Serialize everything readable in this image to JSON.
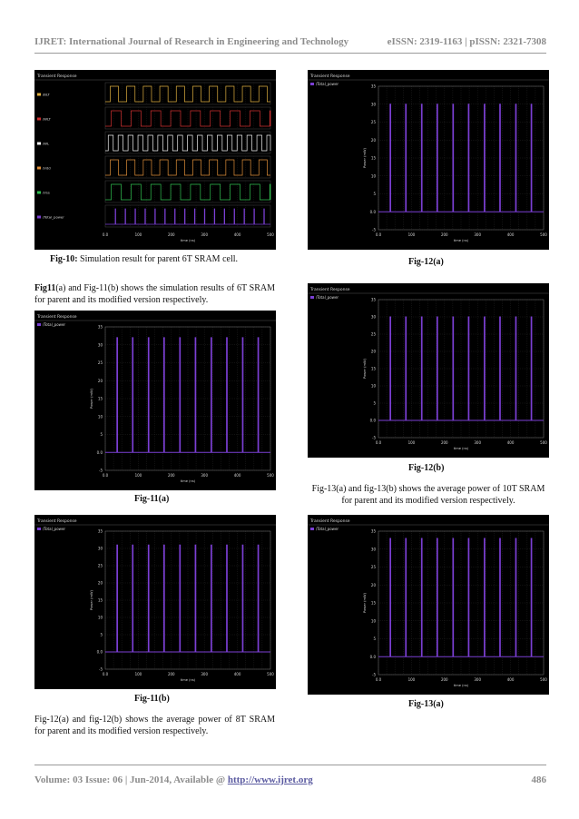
{
  "header": {
    "journal": "IJRET: International Journal of Research in Engineering and Technology",
    "issn": "eISSN: 2319-1163 | pISSN: 2321-7308"
  },
  "footer": {
    "volume_text": "Volume: 03 Issue: 06 | Jun-2014, Available @ ",
    "url": "http://www.ijret.org",
    "page_number": "486"
  },
  "figures": {
    "fig10": {
      "label": "Fig-10:",
      "text": " Simulation result for parent 6T SRAM cell."
    },
    "fig11a": "Fig-11(a)",
    "fig11b": "Fig-11(b)",
    "fig12a": "Fig-12(a)",
    "fig12b": "Fig-12(b)",
    "fig13a": "Fig-13(a)"
  },
  "paragraphs": {
    "p1_bold": "Fig11",
    "p1_rest": "(a) and Fig-11(b) shows the simulation results of 6T SRAM for parent and its modified version respectively.",
    "p2": "Fig-12(a) and fig-12(b) shows the average power of 8T SRAM for parent and its modified version respectively.",
    "p3": "Fig-13(a) and fig-13(b) shows the average power of 10T SRAM for parent and its modified version respectively."
  },
  "waveform_window": {
    "title": "Transient Response",
    "x_axis_label": "time (ns)",
    "power_y_label": "Power (mW)",
    "power_legend": "/Total_power",
    "x_ticks": [
      "0.0",
      "100",
      "200",
      "300",
      "400",
      "500"
    ],
    "power_y_ticks": [
      "35",
      "30",
      "25",
      "20",
      "15",
      "10",
      "5",
      "0.0",
      "-5"
    ],
    "colors": {
      "background": "#000000",
      "power_trace": "#7b3fd4",
      "grid": "#2a2a2a",
      "text": "#d8d8d8"
    }
  },
  "chart_data": [
    {
      "id": "fig10",
      "type": "line",
      "title": "Transient Response",
      "xlabel": "time (ns)",
      "xlim": [
        0,
        500
      ],
      "series": [
        {
          "name": "/BLT",
          "color": "#e0b040",
          "kind": "pulse",
          "period": 50,
          "duty": 0.5,
          "low": 0,
          "high": 1
        },
        {
          "name": "/WLT",
          "color": "#d03030",
          "kind": "pulse",
          "period": 60,
          "duty": 0.5,
          "low": 0,
          "high": 1
        },
        {
          "name": "/WL",
          "color": "#f0f0f0",
          "kind": "pulse",
          "period": 30,
          "duty": 0.5,
          "low": 0,
          "high": 1
        },
        {
          "name": "/Vdd",
          "color": "#e0903a",
          "kind": "pulse",
          "period": 50,
          "duty": 0.5,
          "low": 0,
          "high": 1
        },
        {
          "name": "/Vss",
          "color": "#30c050",
          "kind": "pulse",
          "period": 60,
          "duty": 0.5,
          "low": 0,
          "high": 1
        },
        {
          "name": "/Total_power",
          "color": "#7b3fd4",
          "kind": "spike",
          "times": [
            30,
            60,
            90,
            120,
            150,
            180,
            210,
            240,
            270,
            300,
            330,
            360,
            390,
            420,
            450,
            480
          ],
          "low": 0,
          "high": 1
        }
      ]
    },
    {
      "id": "fig11a",
      "type": "line",
      "title": "Transient Response",
      "xlabel": "time (ns)",
      "ylabel": "Power (mW)",
      "xlim": [
        0,
        500
      ],
      "ylim": [
        -5,
        35
      ],
      "series": [
        {
          "name": "/Total_power",
          "color": "#7b3fd4",
          "spikes": [
            35,
            82,
            130,
            177,
            225,
            272,
            320,
            367,
            415,
            462
          ],
          "baseline": 0,
          "peak": 32
        }
      ]
    },
    {
      "id": "fig11b",
      "type": "line",
      "title": "Transient Response",
      "xlabel": "time (ns)",
      "ylabel": "Power (mW)",
      "xlim": [
        0,
        500
      ],
      "ylim": [
        -5,
        35
      ],
      "series": [
        {
          "name": "/Total_power",
          "color": "#7b3fd4",
          "spikes": [
            35,
            82,
            130,
            177,
            225,
            272,
            320,
            367,
            415,
            462
          ],
          "baseline": 0,
          "peak": 31
        }
      ]
    },
    {
      "id": "fig12a",
      "type": "line",
      "title": "Transient Response",
      "xlabel": "time (ns)",
      "ylabel": "Power (mW)",
      "xlim": [
        0,
        500
      ],
      "ylim": [
        -5,
        35
      ],
      "series": [
        {
          "name": "/Total_power",
          "color": "#7b3fd4",
          "spikes": [
            35,
            82,
            130,
            177,
            225,
            272,
            320,
            367,
            415,
            462
          ],
          "baseline": 0,
          "peak": 30
        }
      ]
    },
    {
      "id": "fig12b",
      "type": "line",
      "title": "Transient Response",
      "xlabel": "time (ns)",
      "ylabel": "Power (mW)",
      "xlim": [
        0,
        500
      ],
      "ylim": [
        -5,
        35
      ],
      "series": [
        {
          "name": "/Total_power",
          "color": "#7b3fd4",
          "spikes": [
            35,
            82,
            130,
            177,
            225,
            272,
            320,
            367,
            415,
            462
          ],
          "baseline": 0,
          "peak": 30
        }
      ]
    },
    {
      "id": "fig13a",
      "type": "line",
      "title": "Transient Response",
      "xlabel": "time (ns)",
      "ylabel": "Power (mW)",
      "xlim": [
        0,
        500
      ],
      "ylim": [
        -5,
        35
      ],
      "series": [
        {
          "name": "/Total_power",
          "color": "#7b3fd4",
          "spikes": [
            35,
            82,
            130,
            177,
            225,
            272,
            320,
            367,
            415,
            462
          ],
          "baseline": 0,
          "peak": 33
        }
      ]
    }
  ]
}
